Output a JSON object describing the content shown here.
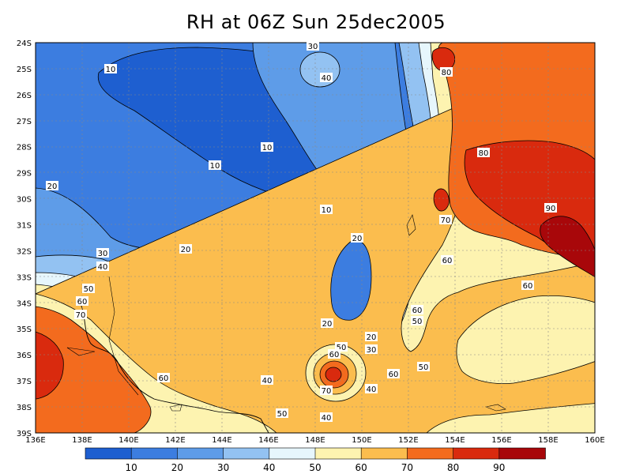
{
  "title": "RH at 06Z Sun 25dec2005",
  "lat_labels": [
    "24S",
    "25S",
    "26S",
    "27S",
    "28S",
    "29S",
    "30S",
    "31S",
    "32S",
    "33S",
    "34S",
    "35S",
    "36S",
    "37S",
    "38S",
    "39S"
  ],
  "lon_labels": [
    "136E",
    "138E",
    "140E",
    "142E",
    "144E",
    "146E",
    "148E",
    "150E",
    "152E",
    "154E",
    "156E",
    "158E",
    "160E"
  ],
  "colorbar": {
    "labels": [
      "10",
      "20",
      "30",
      "40",
      "50",
      "60",
      "70",
      "80",
      "90"
    ],
    "colors": [
      "#1e5fd0",
      "#3c7de0",
      "#5e9ce8",
      "#93c2f2",
      "#e6f6fc",
      "#fdf3b0",
      "#fbbd4e",
      "#f36b1e",
      "#d92a0e",
      "#a8070a"
    ]
  },
  "contour_labels": [
    {
      "text": "10"
    },
    {
      "text": "10"
    },
    {
      "text": "10"
    },
    {
      "text": "10"
    },
    {
      "text": "20"
    },
    {
      "text": "20"
    },
    {
      "text": "20"
    },
    {
      "text": "20"
    },
    {
      "text": "20"
    },
    {
      "text": "30"
    },
    {
      "text": "30"
    },
    {
      "text": "30"
    },
    {
      "text": "40"
    },
    {
      "text": "40"
    },
    {
      "text": "40"
    },
    {
      "text": "40"
    },
    {
      "text": "40"
    },
    {
      "text": "50"
    },
    {
      "text": "50"
    },
    {
      "text": "50"
    },
    {
      "text": "50"
    },
    {
      "text": "50"
    },
    {
      "text": "60"
    },
    {
      "text": "60"
    },
    {
      "text": "60"
    },
    {
      "text": "60"
    },
    {
      "text": "60"
    },
    {
      "text": "60"
    },
    {
      "text": "60"
    },
    {
      "text": "70"
    },
    {
      "text": "70"
    },
    {
      "text": "70"
    },
    {
      "text": "80"
    },
    {
      "text": "80"
    },
    {
      "text": "90"
    }
  ]
}
